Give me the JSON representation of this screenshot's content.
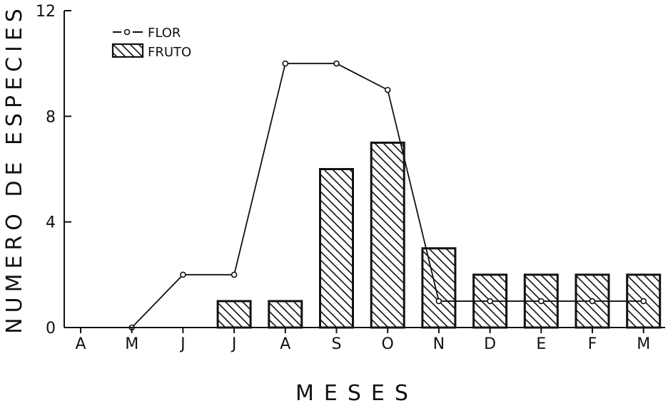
{
  "chart_data": {
    "type": "bar",
    "categories": [
      "A",
      "M",
      "J",
      "J",
      "A",
      "S",
      "O",
      "N",
      "D",
      "E",
      "F",
      "M"
    ],
    "series": [
      {
        "name": "FRUTO",
        "type": "bar",
        "values": [
          0,
          0,
          0,
          1,
          1,
          6,
          7,
          3,
          2,
          2,
          2,
          2
        ]
      },
      {
        "name": "FLOR",
        "type": "line",
        "values": [
          null,
          0,
          2,
          2,
          10,
          10,
          9,
          1,
          1,
          1,
          1,
          1
        ]
      }
    ],
    "xlabel": "MESES",
    "ylabel": "NUMERO DE ESPECIES",
    "ylim": [
      0,
      12
    ],
    "yticks": [
      0,
      4,
      8,
      12
    ],
    "legend_position": "top-left",
    "bar_fill": "diagonal-hatch",
    "colors": {
      "ink": "#111111",
      "background": "#ffffff"
    }
  }
}
